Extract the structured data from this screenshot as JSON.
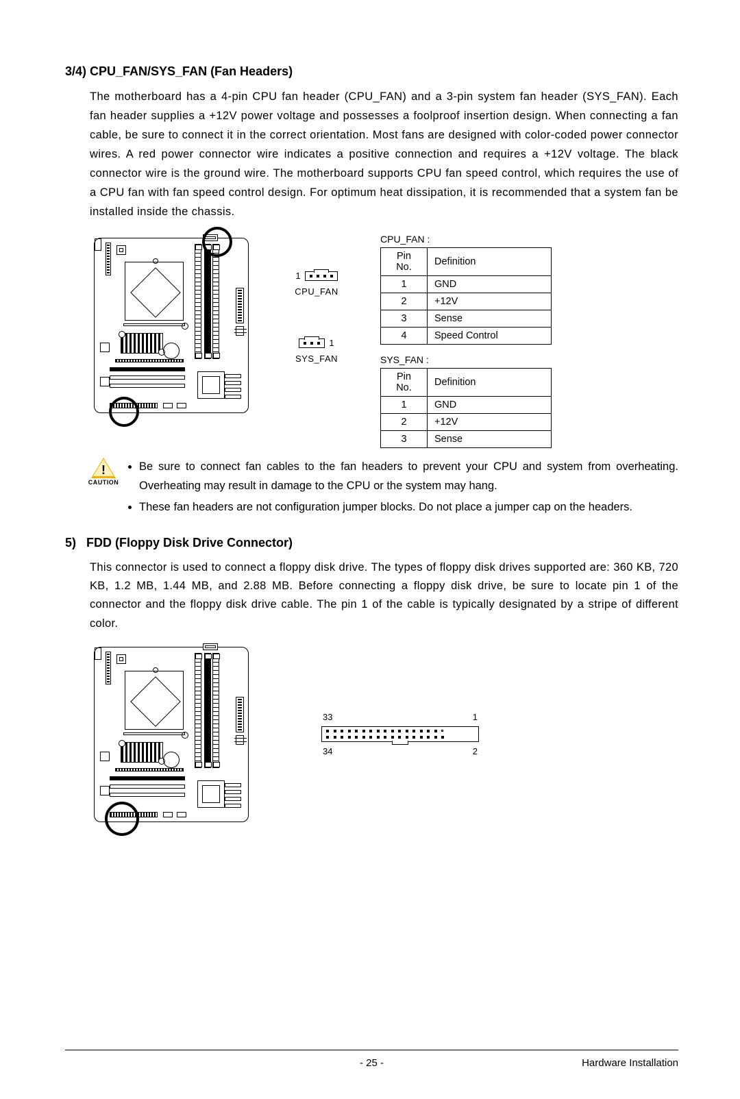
{
  "section1": {
    "heading": "3/4) CPU_FAN/SYS_FAN (Fan Headers)",
    "body": "The motherboard has a 4-pin CPU fan header (CPU_FAN) and a 3-pin system fan header (SYS_FAN). Each fan header supplies a +12V power voltage and possesses a foolproof insertion design. When connecting a fan cable, be sure to connect it in the correct orientation. Most fans are designed with color-coded power connector wires. A red power connector wire indicates a positive connection and requires a +12V voltage. The black connector wire is the ground wire. The motherboard supports CPU fan speed control, which requires the use of a CPU fan with fan speed control design. For optimum heat dissipation, it is recommended that a system fan be installed inside the chassis.",
    "cpu_fan": {
      "label": "CPU_FAN",
      "pin_index": "1",
      "caption": "CPU_FAN :",
      "header_pin": "Pin No.",
      "header_def": "Definition",
      "rows": [
        {
          "pin": "1",
          "def": "GND"
        },
        {
          "pin": "2",
          "def": "+12V"
        },
        {
          "pin": "3",
          "def": "Sense"
        },
        {
          "pin": "4",
          "def": "Speed Control"
        }
      ]
    },
    "sys_fan": {
      "label": "SYS_FAN",
      "pin_index": "1",
      "caption": "SYS_FAN :",
      "header_pin": "Pin No.",
      "header_def": "Definition",
      "rows": [
        {
          "pin": "1",
          "def": "GND"
        },
        {
          "pin": "2",
          "def": "+12V"
        },
        {
          "pin": "3",
          "def": "Sense"
        }
      ]
    },
    "caution": {
      "label": "CAUTION",
      "items": [
        "Be sure to connect fan cables to the fan headers to prevent your CPU and system from overheating. Overheating may result in damage to the CPU or the system may hang.",
        "These fan headers are not configuration jumper blocks. Do not place a jumper cap on the headers."
      ]
    }
  },
  "section2": {
    "heading": "5)   FDD (Floppy Disk Drive Connector)",
    "body": "This connector is used to connect a floppy disk drive. The types of floppy disk drives supported are: 360 KB, 720 KB, 1.2 MB, 1.44 MB, and 2.88 MB. Before connecting a floppy disk drive, be sure to locate pin 1 of the connector and the floppy disk drive cable. The pin 1 of the cable is typically designated by a stripe of different color.",
    "fdd_labels": {
      "tl": "33",
      "tr": "1",
      "bl": "34",
      "br": "2"
    }
  },
  "footer": {
    "page": "-  25  -",
    "section": "Hardware Installation"
  },
  "style": {
    "text_color": "#000000",
    "caution_color": "#f0b000",
    "border_color": "#000000",
    "fontsize_heading_pt": 14,
    "fontsize_body_pt": 12,
    "fontsize_table_pt": 11,
    "fontsize_small_pt": 10
  }
}
